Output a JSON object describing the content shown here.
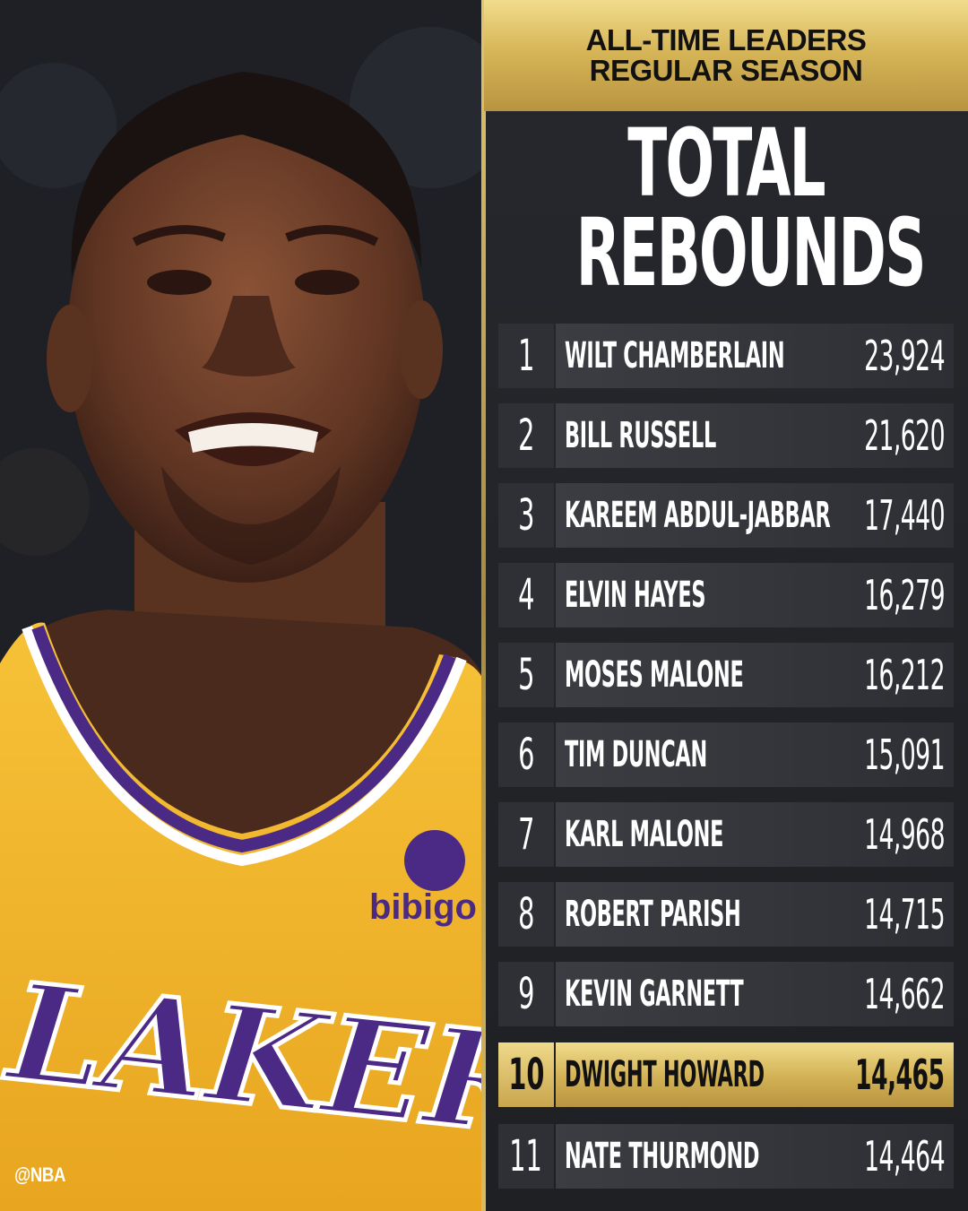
{
  "header": {
    "line1": "ALL-TIME LEADERS",
    "line2": "REGULAR SEASON"
  },
  "title": {
    "line1": "TOTAL",
    "line2": "REBOUNDS"
  },
  "rows": [
    {
      "rank": "1",
      "name": "WILT CHAMBERLAIN",
      "value": "23,924"
    },
    {
      "rank": "2",
      "name": "BILL RUSSELL",
      "value": "21,620"
    },
    {
      "rank": "3",
      "name": "KAREEM ABDUL-JABBAR",
      "value": "17,440"
    },
    {
      "rank": "4",
      "name": "ELVIN HAYES",
      "value": "16,279"
    },
    {
      "rank": "5",
      "name": "MOSES MALONE",
      "value": "16,212"
    },
    {
      "rank": "6",
      "name": "TIM DUNCAN",
      "value": "15,091"
    },
    {
      "rank": "7",
      "name": "KARL MALONE",
      "value": "14,968"
    },
    {
      "rank": "8",
      "name": "ROBERT PARISH",
      "value": "14,715"
    },
    {
      "rank": "9",
      "name": "KEVIN GARNETT",
      "value": "14,662"
    },
    {
      "rank": "10",
      "name": "DWIGHT HOWARD",
      "value": "14,465",
      "highlighted": true
    },
    {
      "rank": "11",
      "name": "NATE THURMOND",
      "value": "14,464"
    }
  ],
  "photo": {
    "jersey_text": "LAKERS",
    "sponsor": "bibigo"
  },
  "watermark": "@NBA",
  "colors": {
    "gold": "#d7b659",
    "panel": "#26282d",
    "jersey_yellow": "#f2b62c",
    "jersey_purple": "#4b2a86"
  }
}
